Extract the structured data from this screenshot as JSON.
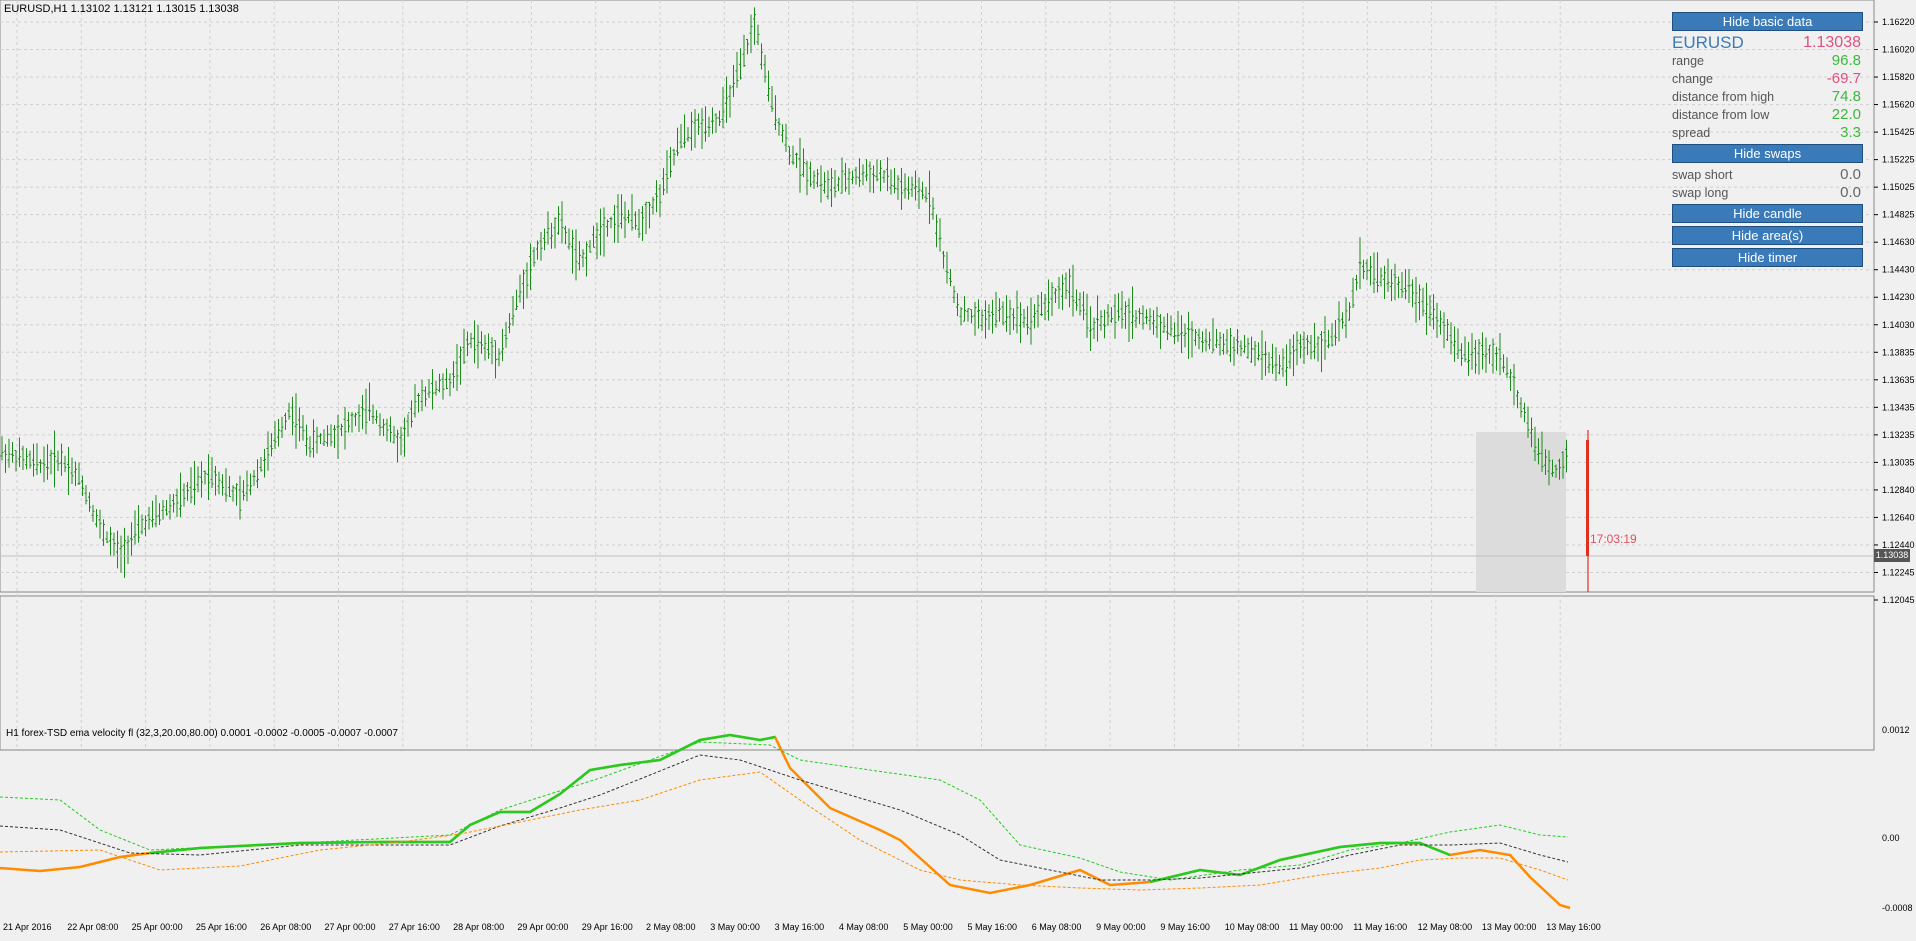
{
  "chart": {
    "title": "EURUSD,H1  1.13102 1.13121 1.13015 1.13038",
    "timer": "17:03:19",
    "current_price_tag": "1.13038",
    "colors": {
      "bull": "#1a8a1a",
      "bear": "#1a8a1a",
      "timer": "#e05060",
      "rect": "#d8d8d8",
      "grid": "#c8c8c8"
    },
    "price_axis": [
      "1.16220",
      "1.16020",
      "1.15820",
      "1.15620",
      "1.15425",
      "1.15225",
      "1.15025",
      "1.14825",
      "1.14630",
      "1.14430",
      "1.14230",
      "1.14030",
      "1.13835",
      "1.13635",
      "1.13435",
      "1.13235",
      "1.13035",
      "1.12840",
      "1.12640",
      "1.12440",
      "1.12245",
      "1.12045"
    ],
    "time_axis": [
      "21 Apr 2016",
      "22 Apr 08:00",
      "25 Apr 00:00",
      "25 Apr 16:00",
      "26 Apr 08:00",
      "27 Apr 00:00",
      "27 Apr 16:00",
      "28 Apr 08:00",
      "29 Apr 00:00",
      "29 Apr 16:00",
      "2 May 08:00",
      "3 May 00:00",
      "3 May 16:00",
      "4 May 08:00",
      "5 May 00:00",
      "5 May 16:00",
      "6 May 08:00",
      "9 May 00:00",
      "9 May 16:00",
      "10 May 08:00",
      "11 May 00:00",
      "11 May 16:00",
      "12 May 08:00",
      "13 May 00:00",
      "13 May 16:00"
    ]
  },
  "indicator": {
    "title": "H1 forex-TSD ema velocity fl (32,3,20.00,80.00) 0.0001 -0.0002 -0.0005 -0.0007 -0.0007",
    "axis": [
      "0.0012",
      "0.00",
      "-0.0008"
    ]
  },
  "panel": {
    "hide_basic_data": "Hide basic data",
    "symbol": "EURUSD",
    "price": "1.13038",
    "rows": [
      {
        "label": "range",
        "value": "96.8",
        "color": "green"
      },
      {
        "label": "change",
        "value": "-69.7",
        "color": "pink"
      },
      {
        "label": "distance from high",
        "value": "74.8",
        "color": "green"
      },
      {
        "label": "distance from low",
        "value": "22.0",
        "color": "green"
      },
      {
        "label": "spread",
        "value": "3.3",
        "color": "green"
      }
    ],
    "hide_swaps": "Hide swaps",
    "swaps": [
      {
        "label": "swap short",
        "value": "0.0"
      },
      {
        "label": "swap long",
        "value": "0.0"
      }
    ],
    "hide_candle": "Hide candle",
    "hide_areas": "Hide area(s)",
    "hide_timer": "Hide timer"
  }
}
